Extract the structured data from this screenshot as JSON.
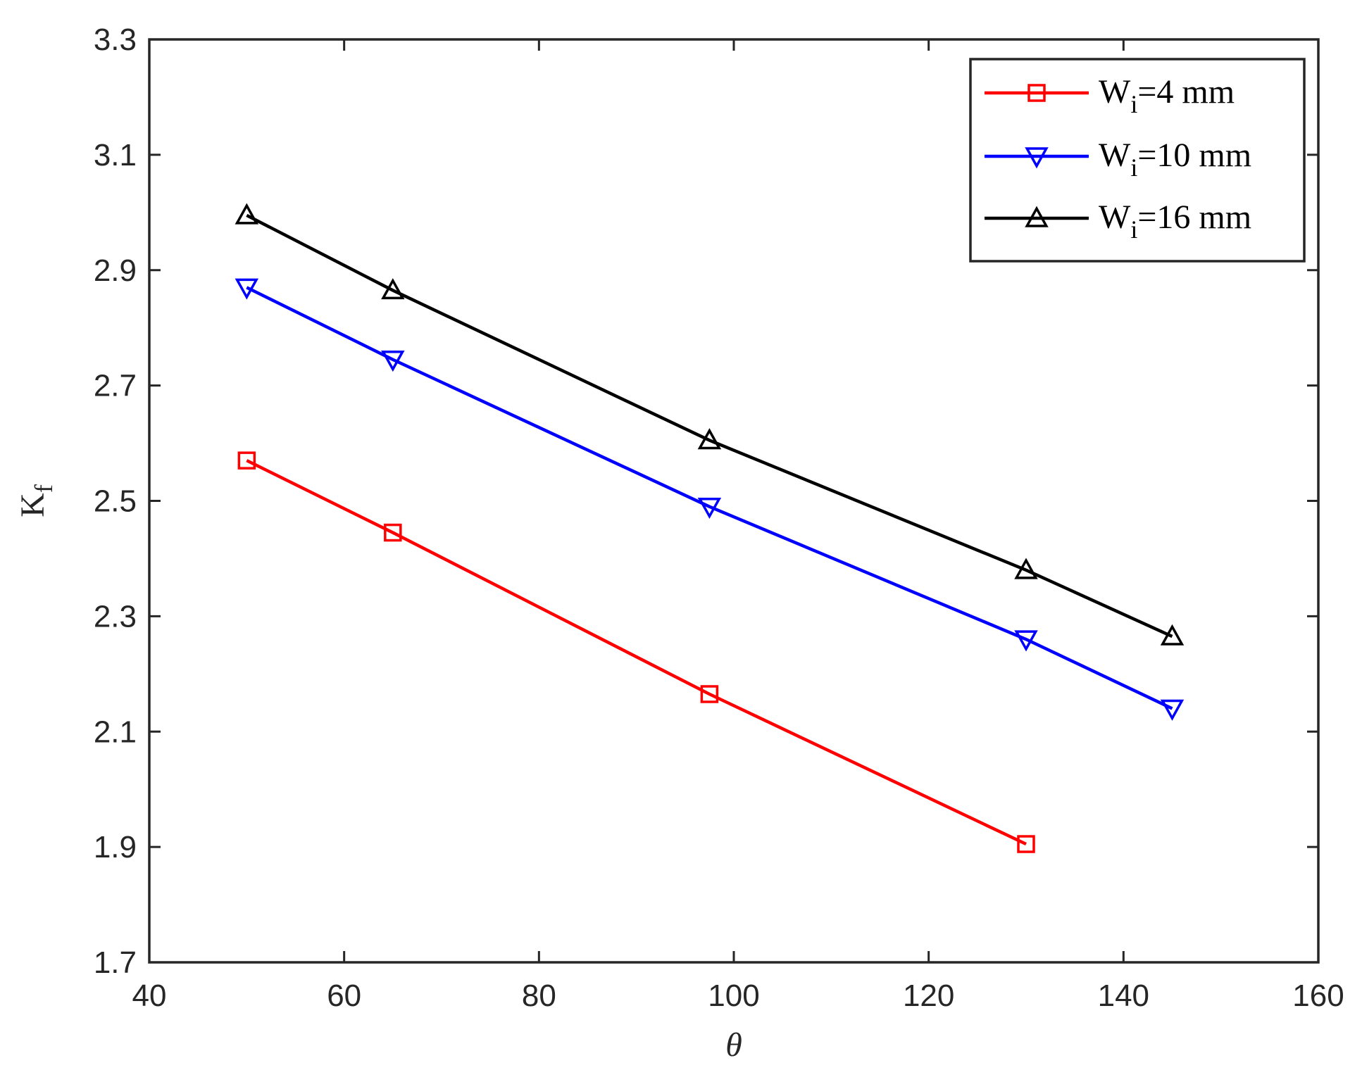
{
  "chart_data": {
    "type": "line",
    "xlabel": "θ",
    "ylabel_main": "K",
    "ylabel_sub": "f",
    "xlim": [
      40,
      160
    ],
    "ylim": [
      1.7,
      3.3
    ],
    "xticks": [
      40,
      60,
      80,
      100,
      120,
      140,
      160
    ],
    "yticks": [
      1.7,
      1.9,
      2.1,
      2.3,
      2.5,
      2.7,
      2.9,
      3.1,
      3.3
    ],
    "xtick_labels": [
      "40",
      "60",
      "80",
      "100",
      "120",
      "140",
      "160"
    ],
    "ytick_labels": [
      "1.7",
      "1.9",
      "2.1",
      "2.3",
      "2.5",
      "2.7",
      "2.9",
      "3.1",
      "3.3"
    ],
    "grid": false,
    "legend_position": "top-right",
    "series": [
      {
        "name": "W_i=4 mm",
        "legend_main": "W",
        "legend_sub": "i",
        "legend_rest": "=4 mm",
        "color": "#ff0000",
        "marker": "square",
        "x": [
          50,
          65,
          97.5,
          130
        ],
        "y": [
          2.57,
          2.445,
          2.165,
          1.905
        ]
      },
      {
        "name": "W_i=10 mm",
        "legend_main": "W",
        "legend_sub": "i",
        "legend_rest": "=10 mm",
        "color": "#0000ff",
        "marker": "triangle-down",
        "x": [
          50,
          65,
          97.5,
          130,
          145
        ],
        "y": [
          2.87,
          2.745,
          2.49,
          2.26,
          2.14
        ]
      },
      {
        "name": "W_i=16 mm",
        "legend_main": "W",
        "legend_sub": "i",
        "legend_rest": "=16 mm",
        "color": "#000000",
        "marker": "triangle-up",
        "x": [
          50,
          65,
          97.5,
          130,
          145
        ],
        "y": [
          2.995,
          2.865,
          2.605,
          2.38,
          2.265
        ]
      }
    ]
  }
}
